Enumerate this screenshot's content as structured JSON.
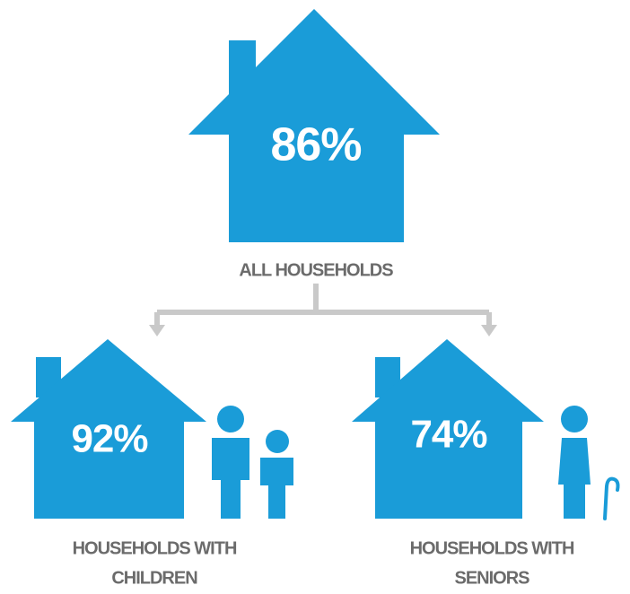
{
  "top": {
    "value": "86%",
    "label": "ALL HOUSEHOLDS"
  },
  "groups": [
    {
      "value": "92%",
      "label": [
        "HOUSEHOLDS WITH",
        "CHILDREN"
      ]
    },
    {
      "value": "74%",
      "label": [
        "HOUSEHOLDS WITH",
        "SENIORS"
      ]
    }
  ]
}
